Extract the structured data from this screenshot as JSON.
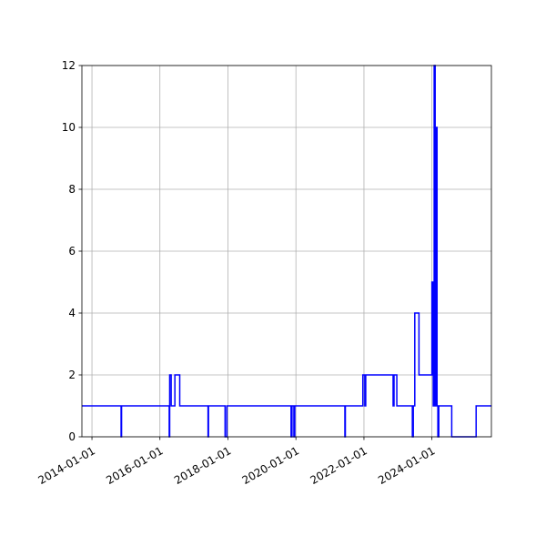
{
  "chart_data": {
    "type": "line",
    "step": true,
    "title": "",
    "xlabel": "",
    "ylabel": "",
    "xlim": [
      "2013-09-15",
      "2025-10-01"
    ],
    "ylim": [
      0,
      12
    ],
    "grid": true,
    "line_color": "#0000ff",
    "x_ticks": [
      "2014-01-01",
      "2016-01-01",
      "2018-01-01",
      "2020-01-01",
      "2022-01-01",
      "2024-01-01"
    ],
    "y_ticks": [
      0,
      2,
      4,
      6,
      8,
      10,
      12
    ],
    "series": [
      {
        "x": [
          "2013-09-15",
          "2014-11-10",
          "2014-11-15",
          "2016-04-10",
          "2016-04-15",
          "2016-05-01",
          "2016-06-10",
          "2016-06-15",
          "2016-08-01",
          "2017-06-01",
          "2017-06-06",
          "2017-12-01",
          "2017-12-20",
          "2019-11-10",
          "2019-11-20",
          "2019-12-10",
          "2019-12-20",
          "2021-06-10",
          "2021-06-15",
          "2021-12-20",
          "2022-01-10",
          "2022-01-20",
          "2022-02-10",
          "2022-11-10",
          "2022-11-20",
          "2022-12-20",
          "2023-06-05",
          "2023-06-15",
          "2023-07-01",
          "2023-07-15",
          "2023-08-15",
          "2024-01-01",
          "2024-01-15",
          "2024-01-25",
          "2024-02-05",
          "2024-02-15",
          "2024-02-25",
          "2024-03-05",
          "2024-03-15",
          "2024-03-20",
          "2024-08-01",
          "2025-04-20",
          "2025-10-01"
        ],
        "values": [
          1,
          0,
          1,
          0,
          2,
          1,
          2,
          2,
          1,
          0,
          1,
          0,
          1,
          0,
          1,
          0,
          1,
          0,
          1,
          2,
          1,
          2,
          2,
          1,
          2,
          1,
          0,
          1,
          4,
          4,
          2,
          5,
          1,
          12,
          1,
          10,
          1,
          0,
          1,
          1,
          0,
          1,
          1
        ]
      }
    ]
  }
}
